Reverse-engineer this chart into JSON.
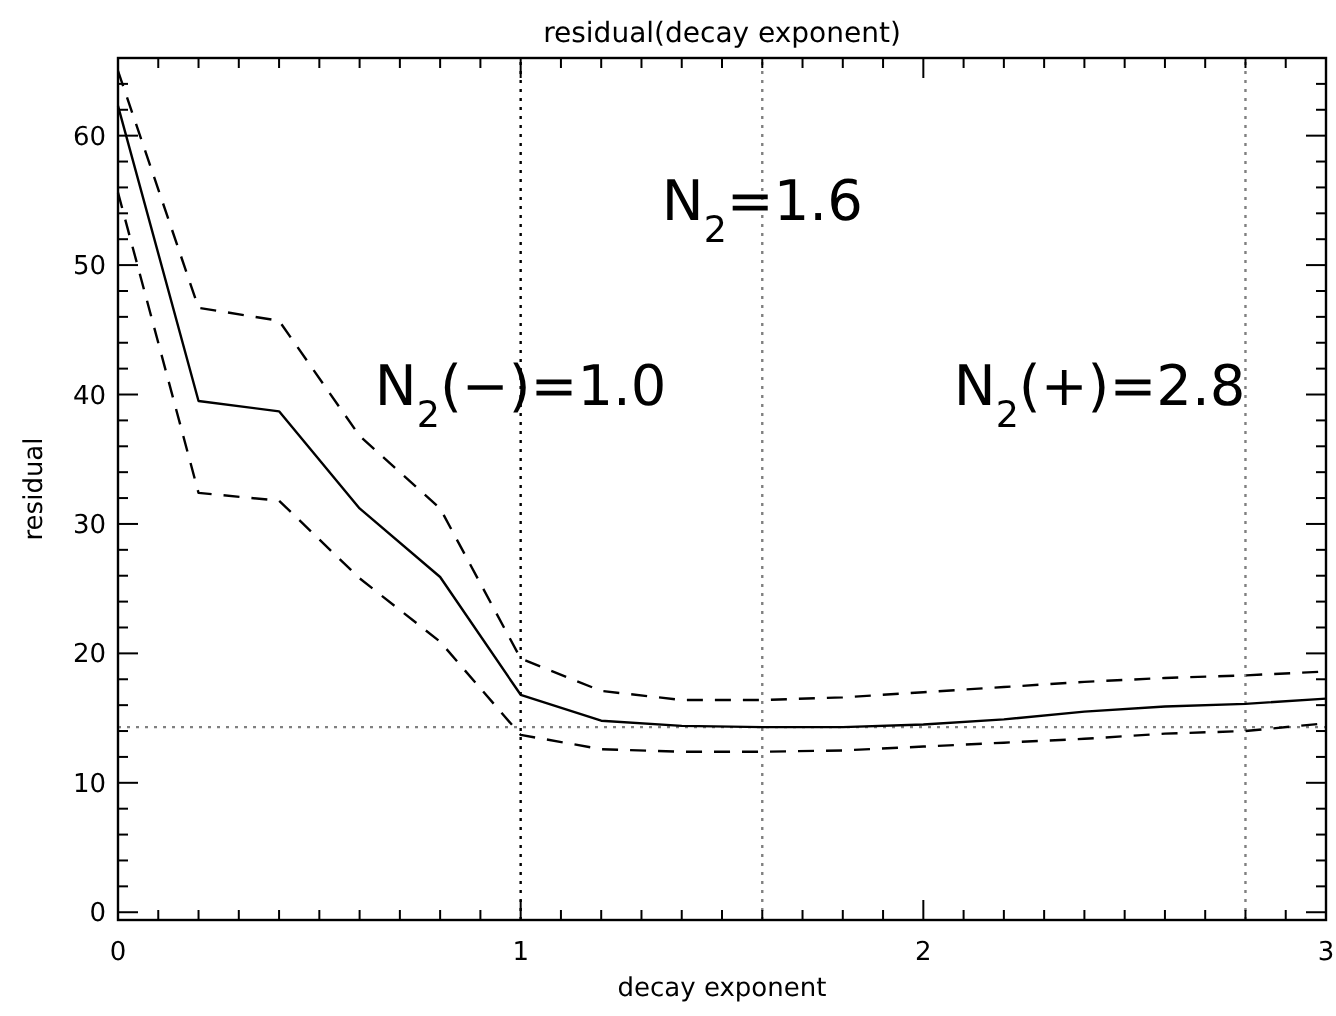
{
  "chart_data": {
    "type": "line",
    "title": "residual(decay exponent)",
    "xlabel": "decay exponent",
    "ylabel": "residual",
    "x": [
      0,
      0.2,
      0.4,
      0.6,
      0.8,
      1.0,
      1.2,
      1.4,
      1.6,
      1.8,
      2.0,
      2.2,
      2.4,
      2.6,
      2.8,
      3.0
    ],
    "series": [
      {
        "color": "#000000",
        "line_style": "solid",
        "values": [
          62.3,
          39.5,
          38.7,
          31.2,
          25.9,
          16.8,
          14.8,
          14.4,
          14.3,
          14.3,
          14.5,
          14.9,
          15.5,
          15.9,
          16.1,
          16.5
        ]
      },
      {
        "color": "#000000",
        "line_style": "dashed",
        "values": [
          65,
          46.7,
          45.7,
          36.8,
          31.2,
          19.6,
          17.1,
          16.4,
          16.4,
          16.6,
          17.0,
          17.4,
          17.8,
          18.1,
          18.3,
          18.6
        ]
      },
      {
        "color": "#000000",
        "line_style": "dashed",
        "values": [
          55.6,
          32.4,
          31.8,
          25.8,
          20.9,
          13.7,
          12.6,
          12.4,
          12.4,
          12.5,
          12.8,
          13.1,
          13.4,
          13.8,
          14.0,
          14.6
        ]
      }
    ],
    "xlim": [
      0,
      3
    ],
    "xticks": [
      0,
      {
        "value": 0.1,
        "label": null
      },
      {
        "value": 0.2,
        "label": null
      },
      {
        "value": 0.3,
        "label": null
      },
      {
        "value": 0.4,
        "label": null
      },
      {
        "value": 0.5,
        "label": null
      },
      {
        "value": 0.6,
        "label": null
      },
      {
        "value": 0.7,
        "label": null
      },
      {
        "value": 0.8,
        "label": null
      },
      {
        "value": 0.9,
        "label": null
      },
      1,
      {
        "value": 1.1,
        "label": null
      },
      {
        "value": 1.2,
        "label": null
      },
      {
        "value": 1.3,
        "label": null
      },
      {
        "value": 1.4,
        "label": null
      },
      {
        "value": 1.5,
        "label": null
      },
      {
        "value": 1.6,
        "label": null
      },
      {
        "value": 1.7,
        "label": null
      },
      {
        "value": 1.8,
        "label": null
      },
      {
        "value": 1.9,
        "label": null
      },
      2,
      {
        "value": 2.1,
        "label": null
      },
      {
        "value": 2.2,
        "label": null
      },
      {
        "value": 2.3,
        "label": null
      },
      {
        "value": 2.4,
        "label": null
      },
      {
        "value": 2.5,
        "label": null
      },
      {
        "value": 2.6,
        "label": null
      },
      {
        "value": 2.7,
        "label": null
      },
      {
        "value": 2.8,
        "label": null
      },
      {
        "value": 2.9,
        "label": null
      },
      3
    ],
    "ylim": [
      -0.6,
      66
    ],
    "yticks": [
      0,
      {
        "value": 2,
        "label": null
      },
      {
        "value": 4,
        "label": null
      },
      {
        "value": 6,
        "label": null
      },
      {
        "value": 8,
        "label": null
      },
      10,
      {
        "value": 12,
        "label": null
      },
      {
        "value": 14,
        "label": null
      },
      {
        "value": 16,
        "label": null
      },
      {
        "value": 18,
        "label": null
      },
      20,
      {
        "value": 22,
        "label": null
      },
      {
        "value": 24,
        "label": null
      },
      {
        "value": 26,
        "label": null
      },
      {
        "value": 28,
        "label": null
      },
      30,
      {
        "value": 32,
        "label": null
      },
      {
        "value": 34,
        "label": null
      },
      {
        "value": 36,
        "label": null
      },
      {
        "value": 38,
        "label": null
      },
      40,
      {
        "value": 42,
        "label": null
      },
      {
        "value": 44,
        "label": null
      },
      {
        "value": 46,
        "label": null
      },
      {
        "value": 48,
        "label": null
      },
      50,
      {
        "value": 52,
        "label": null
      },
      {
        "value": 54,
        "label": null
      },
      {
        "value": 56,
        "label": null
      },
      {
        "value": 58,
        "label": null
      },
      60,
      {
        "value": 62,
        "label": null
      },
      {
        "value": 64,
        "label": null
      },
      {
        "value": 66,
        "label": null
      }
    ],
    "ref_lines": [
      {
        "axis": "y",
        "value": 14.3,
        "line_style": "dotted",
        "color": "#808080"
      },
      {
        "axis": "x",
        "value": 1.0,
        "line_style": "dotted",
        "color": "#000000"
      },
      {
        "axis": "x",
        "value": 1.6,
        "line_style": "dotted",
        "color": "#808080"
      },
      {
        "axis": "x",
        "value": 2.8,
        "line_style": "dotted",
        "color": "#808080"
      }
    ],
    "annotations": [
      {
        "text": "N$_{2}$(−)=1.0",
        "x": 1.0,
        "y": 40.7
      },
      {
        "text": "N$_{2}$=1.6",
        "x": 1.6,
        "y": 55
      },
      {
        "text": "N$_{2}$(+)=2.8",
        "x": 2.8,
        "y": 40.7
      }
    ],
    "grid": false,
    "marker": "none"
  }
}
